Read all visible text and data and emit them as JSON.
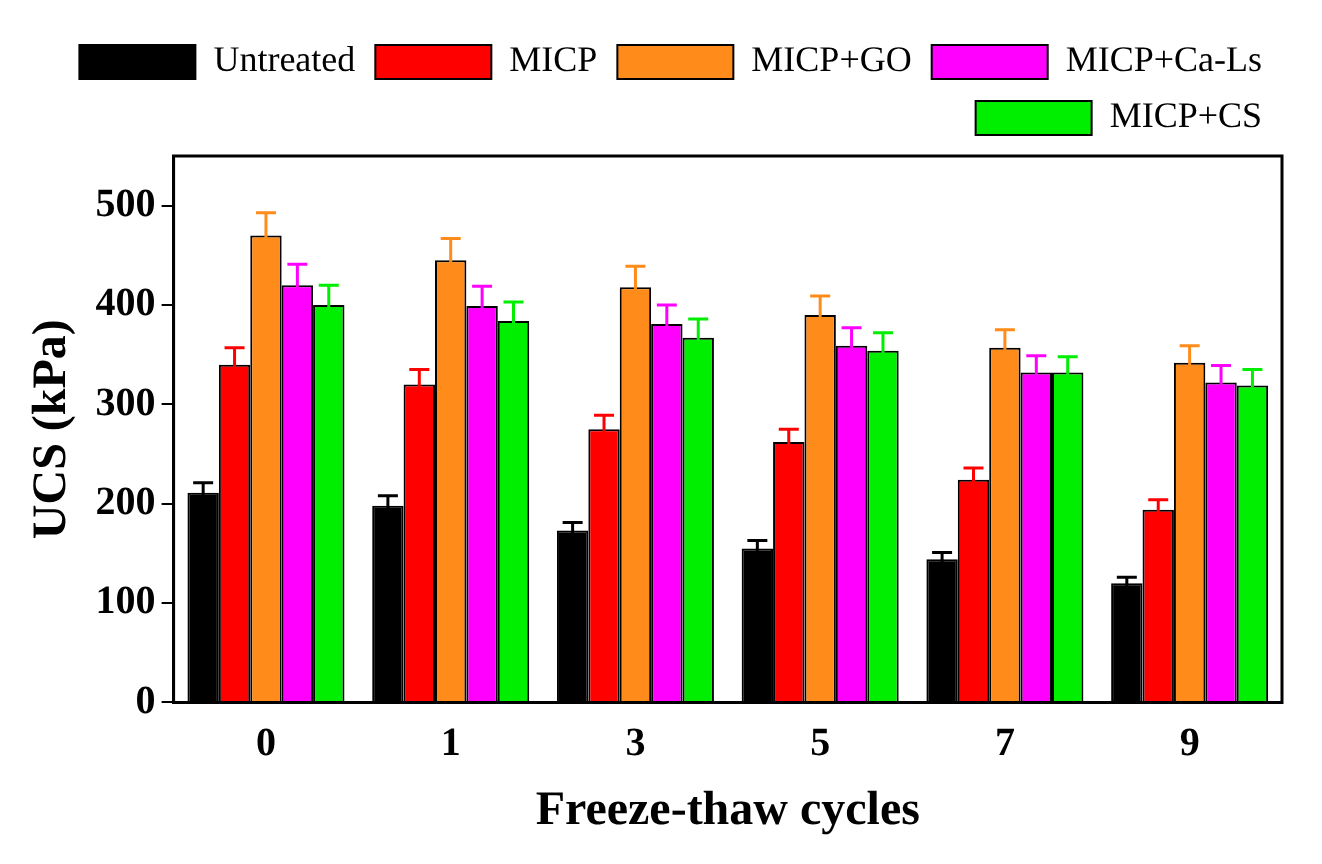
{
  "chart_data": {
    "type": "bar",
    "xlabel": "Freeze-thaw cycles",
    "ylabel": "UCS (kPa)",
    "categories": [
      "0",
      "1",
      "3",
      "5",
      "7",
      "9"
    ],
    "series": [
      {
        "name": "Untreated",
        "color": "#000000",
        "values": [
          211,
          198,
          173,
          155,
          144,
          120
        ],
        "errors": [
          10,
          10,
          8,
          8,
          7,
          6
        ]
      },
      {
        "name": "MICP",
        "color": "#ff0000",
        "values": [
          340,
          320,
          275,
          262,
          224,
          194
        ],
        "errors": [
          17,
          15,
          14,
          13,
          12,
          10
        ]
      },
      {
        "name": "MICP+GO",
        "color": "#ff8c1a",
        "values": [
          470,
          445,
          418,
          390,
          357,
          342
        ],
        "errors": [
          23,
          22,
          21,
          19,
          18,
          17
        ]
      },
      {
        "name": "MICP+Ca-Ls",
        "color": "#ff00ff",
        "values": [
          420,
          399,
          381,
          359,
          332,
          322
        ],
        "errors": [
          21,
          20,
          19,
          18,
          17,
          17
        ]
      },
      {
        "name": "MICP+CS",
        "color": "#00ee00",
        "values": [
          400,
          384,
          367,
          354,
          332,
          319
        ],
        "errors": [
          20,
          19,
          19,
          18,
          16,
          16
        ]
      }
    ],
    "ylim": [
      0,
      550
    ],
    "yticks": [
      0,
      100,
      200,
      300,
      400,
      500
    ],
    "grid": false,
    "legend": "top"
  }
}
